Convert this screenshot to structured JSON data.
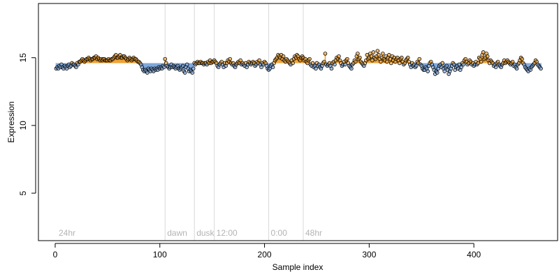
{
  "chart_data": {
    "type": "scatter",
    "title": "",
    "xlabel": "Sample index",
    "ylabel": "Expression",
    "xlim": [
      -16,
      480
    ],
    "ylim": [
      1.5,
      19.0
    ],
    "xticks": [
      0,
      100,
      200,
      300,
      400
    ],
    "xtick_labels": [
      "0",
      "100",
      "200",
      "300",
      "400"
    ],
    "yticks": [
      5,
      10,
      15
    ],
    "ytick_labels": [
      "5",
      "10",
      "15"
    ],
    "baseline": 14.6,
    "event_markers": [
      {
        "x": 105,
        "label": "dawn"
      },
      {
        "x": 133,
        "label": "dusk"
      },
      {
        "x": 152,
        "label": "12:00"
      },
      {
        "x": 204,
        "label": "0:00"
      },
      {
        "x": 237,
        "label": "48hr"
      }
    ],
    "start_label": "24hr",
    "colors": {
      "above_baseline": "#f0a030",
      "below_baseline": "#7fa8dc",
      "point_edge": "#000000",
      "event_line": "#d9d9d9"
    },
    "points": {
      "x_start": 1,
      "y": [
        14.2,
        14.3,
        14.2,
        14.4,
        14.3,
        14.5,
        14.3,
        14.2,
        14.4,
        14.3,
        14.2,
        14.4,
        14.5,
        14.3,
        14.4,
        14.6,
        14.5,
        14.5,
        14.4,
        14.3,
        14.6,
        14.5,
        14.7,
        14.7,
        14.8,
        14.9,
        14.8,
        14.7,
        14.8,
        14.9,
        14.9,
        15.0,
        14.9,
        14.8,
        14.9,
        14.9,
        15.0,
        15.0,
        15.1,
        14.9,
        15.0,
        14.9,
        14.8,
        14.9,
        14.8,
        14.9,
        14.9,
        14.8,
        14.8,
        14.8,
        14.9,
        14.8,
        14.8,
        14.9,
        14.9,
        15.0,
        15.1,
        15.2,
        15.0,
        15.0,
        15.1,
        15.2,
        15.0,
        15.0,
        15.1,
        15.1,
        15.0,
        14.9,
        14.8,
        14.9,
        15.0,
        14.9,
        14.8,
        14.9,
        15.0,
        14.9,
        14.9,
        14.8,
        14.7,
        14.7,
        14.6,
        14.5,
        14.3,
        14.1,
        14.0,
        14.1,
        14.0,
        13.9,
        14.2,
        14.1,
        14.0,
        14.2,
        14.1,
        14.0,
        14.2,
        14.1,
        14.2,
        14.1,
        14.3,
        14.2,
        14.3,
        14.2,
        14.4,
        14.3,
        14.9,
        14.6,
        14.4,
        14.3,
        14.2,
        14.3,
        14.5,
        14.3,
        14.4,
        14.3,
        14.2,
        14.3,
        14.4,
        14.2,
        14.1,
        14.2,
        14.3,
        14.4,
        14.0,
        13.9,
        14.3,
        14.5,
        14.2,
        14.0,
        14.1,
        14.0,
        13.9,
        14.2,
        14.6,
        14.5,
        14.6,
        14.7,
        14.6,
        14.6,
        14.7,
        14.6,
        14.6,
        14.5,
        14.6,
        14.6,
        14.5,
        14.7,
        14.6,
        14.8,
        14.6,
        14.7,
        14.7,
        14.8,
        14.7,
        14.6,
        14.4,
        14.3,
        14.5,
        14.6,
        14.7,
        14.5,
        14.3,
        14.6,
        14.4,
        14.6,
        14.8,
        14.7,
        14.9,
        14.6,
        14.5,
        14.6,
        14.4,
        14.3,
        14.5,
        14.6,
        14.7,
        14.6,
        14.8,
        14.5,
        14.6,
        14.5,
        14.4,
        14.6,
        14.3,
        14.5,
        14.7,
        14.6,
        14.5,
        14.6,
        14.7,
        14.6,
        14.4,
        14.5,
        14.7,
        14.6,
        14.8,
        14.5,
        14.3,
        14.6,
        14.5,
        14.7,
        14.6,
        14.4,
        14.2,
        14.1,
        14.2,
        14.4,
        14.5,
        14.3,
        14.6,
        14.8,
        14.9,
        15.0,
        15.2,
        15.1,
        15.0,
        15.2,
        14.9,
        15.1,
        14.8,
        14.7,
        14.9,
        14.8,
        14.7,
        14.6,
        14.5,
        14.8,
        14.6,
        14.9,
        15.1,
        15.0,
        15.2,
        15.1,
        14.9,
        14.8,
        15.0,
        15.1,
        15.0,
        14.8,
        14.9,
        14.7,
        14.6,
        14.8,
        14.9,
        14.5,
        14.4,
        14.6,
        14.3,
        14.4,
        14.2,
        14.6,
        14.4,
        14.5,
        14.3,
        14.2,
        14.4,
        14.6,
        14.7,
        15.3,
        14.5,
        14.4,
        14.5,
        14.6,
        14.4,
        14.2,
        14.6,
        14.7,
        14.5,
        14.8,
        15.0,
        14.9,
        15.1,
        14.8,
        14.6,
        14.4,
        14.5,
        14.7,
        14.5,
        14.8,
        14.9,
        14.6,
        14.4,
        14.3,
        14.2,
        14.5,
        14.6,
        14.8,
        14.7,
        15.1,
        15.3,
        14.9,
        15.0,
        14.7,
        14.6,
        14.5,
        14.4,
        14.6,
        14.8,
        15.2,
        14.9,
        15.0,
        15.3,
        15.1,
        14.8,
        15.4,
        15.0,
        14.9,
        15.1,
        15.5,
        15.2,
        14.9,
        14.7,
        15.0,
        15.3,
        14.9,
        14.8,
        15.1,
        14.7,
        15.0,
        15.2,
        14.9,
        14.6,
        15.1,
        14.8,
        15.0,
        14.7,
        14.9,
        15.0,
        14.8,
        14.6,
        14.9,
        15.0,
        14.7,
        14.5,
        14.6,
        14.8,
        14.9,
        15.0,
        14.7,
        14.5,
        14.3,
        14.6,
        14.4,
        14.5,
        14.3,
        14.4,
        14.7,
        14.6,
        14.9,
        14.5,
        14.4,
        14.2,
        14.1,
        14.1,
        14.3,
        14.2,
        14.0,
        14.4,
        14.6,
        14.7,
        14.5,
        14.3,
        14.1,
        13.8,
        14.0,
        13.9,
        14.2,
        14.4,
        14.5,
        14.3,
        14.6,
        14.2,
        14.0,
        14.3,
        14.4,
        14.1,
        13.8,
        14.0,
        14.2,
        14.4,
        14.6,
        14.5,
        14.1,
        14.3,
        14.4,
        14.2,
        14.5,
        14.1,
        14.3,
        14.6,
        14.5,
        14.8,
        14.9,
        14.7,
        14.5,
        14.6,
        14.8,
        14.7,
        14.5,
        14.6,
        14.4,
        14.5,
        14.7,
        14.5,
        14.6,
        15.0,
        14.9,
        14.7,
        15.2,
        15.4,
        14.9,
        15.0,
        15.3,
        15.1,
        14.8,
        14.6,
        14.8,
        14.7,
        14.6,
        14.4,
        14.5,
        14.3,
        14.6,
        14.7,
        14.5,
        14.4,
        14.3,
        14.5,
        14.6,
        14.8,
        14.6,
        14.7,
        14.8,
        14.7,
        14.6,
        14.5,
        14.6,
        14.7,
        14.4,
        14.5,
        14.3,
        14.2,
        14.5,
        14.6,
        14.8,
        15.0,
        14.9,
        14.6,
        14.5,
        14.3,
        14.2,
        14.1,
        14.0,
        14.2,
        14.1,
        14.3,
        14.4,
        14.5,
        14.6,
        14.8,
        14.7,
        14.5,
        14.4,
        14.3,
        14.2
      ]
    }
  }
}
